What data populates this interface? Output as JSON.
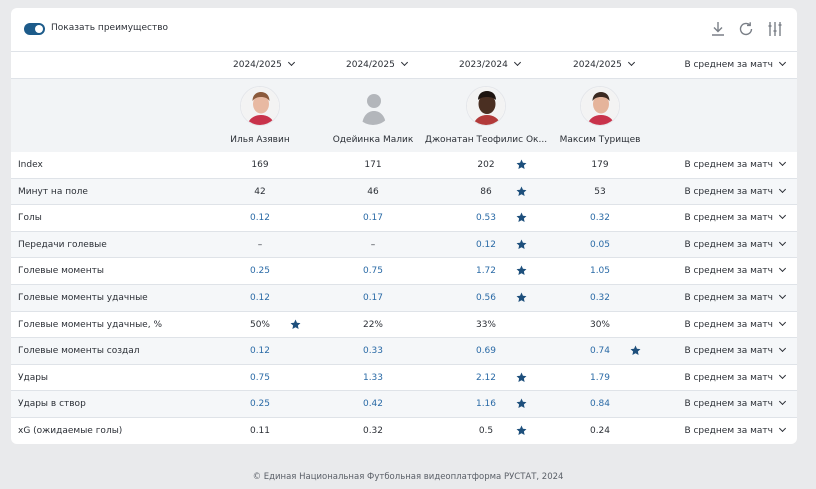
{
  "toolbar": {
    "toggle_label": "Показать преимущество",
    "icons": [
      "download-icon",
      "refresh-icon",
      "sliders-icon"
    ]
  },
  "columns": [
    {
      "season": "2024/2025",
      "player": "Илья Азявин",
      "avatar": "photo"
    },
    {
      "season": "2024/2025",
      "player": "Одейинка Малик",
      "avatar": "placeholder"
    },
    {
      "season": "2023/2024",
      "player": "Джонатан Теофилис Ок...",
      "avatar": "photo"
    },
    {
      "season": "2024/2025",
      "player": "Максим Турищев",
      "avatar": "photo"
    }
  ],
  "aggregate_header": "В среднем за матч",
  "rows": [
    {
      "label": "Index",
      "values": [
        "169",
        "171",
        "202",
        "179"
      ],
      "star": 2,
      "blue": false,
      "agg": "В среднем за матч"
    },
    {
      "label": "Минут на поле",
      "values": [
        "42",
        "46",
        "86",
        "53"
      ],
      "star": 2,
      "blue": false,
      "agg": "В среднем за матч"
    },
    {
      "label": "Голы",
      "values": [
        "0.12",
        "0.17",
        "0.53",
        "0.32"
      ],
      "star": 2,
      "blue": true,
      "agg": "В среднем за матч"
    },
    {
      "label": "Передачи голевые",
      "values": [
        "–",
        "–",
        "0.12",
        "0.05"
      ],
      "star": 2,
      "blue": true,
      "agg": "В среднем за матч"
    },
    {
      "label": "Голевые моменты",
      "values": [
        "0.25",
        "0.75",
        "1.72",
        "1.05"
      ],
      "star": 2,
      "blue": true,
      "agg": "В среднем за матч"
    },
    {
      "label": "Голевые моменты удачные",
      "values": [
        "0.12",
        "0.17",
        "0.56",
        "0.32"
      ],
      "star": 2,
      "blue": true,
      "agg": "В среднем за матч"
    },
    {
      "label": "Голевые моменты удачные, %",
      "values": [
        "50%",
        "22%",
        "33%",
        "30%"
      ],
      "star": 0,
      "blue": false,
      "agg": "В среднем за матч"
    },
    {
      "label": "Голевые моменты создал",
      "values": [
        "0.12",
        "0.33",
        "0.69",
        "0.74"
      ],
      "star": 3,
      "blue": true,
      "agg": "В среднем за матч"
    },
    {
      "label": "Удары",
      "values": [
        "0.75",
        "1.33",
        "2.12",
        "1.79"
      ],
      "star": 2,
      "blue": true,
      "agg": "В среднем за матч"
    },
    {
      "label": "Удары в створ",
      "values": [
        "0.25",
        "0.42",
        "1.16",
        "0.84"
      ],
      "star": 2,
      "blue": true,
      "agg": "В среднем за матч"
    },
    {
      "label": "xG (ожидаемые голы)",
      "values": [
        "0.11",
        "0.32",
        "0.5",
        "0.24"
      ],
      "star": 2,
      "blue": false,
      "agg": "В среднем за матч"
    }
  ],
  "footer": "© Единая Национальная Футбольная видеоплатформа РУСТАТ, 2024",
  "colors": {
    "accent": "#1d5b8a",
    "link": "#2a6aa6",
    "star": "#1d4f7c"
  }
}
